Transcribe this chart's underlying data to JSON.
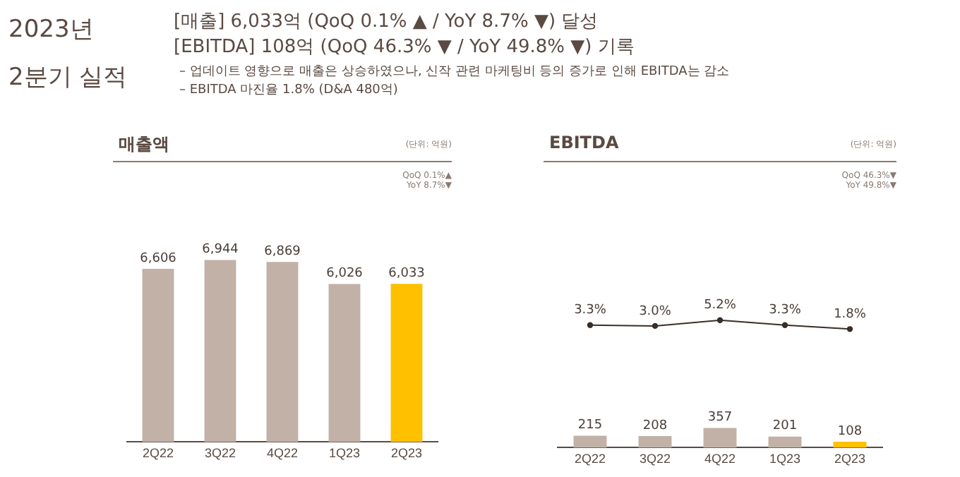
{
  "chart_data": [
    {
      "type": "other",
      "title": "2023년 2분기 실적",
      "annotations": [
        "[매출] 6,033억 (QoQ 0.1% ▲ / YoY 8.7% ▼) 달성",
        "[EBITDA] 108억 (QoQ 46.3% ▼ / YoY 49.8% ▼) 기록",
        "–   업데이트 영향으로 매출은 상승하였으나, 신작 관련 마케팅비 등의 증가로 인해 EBITDA는 감소",
        "–   EBITDA 마진율 1.8% (D&A 480억)"
      ]
    },
    {
      "type": "bar",
      "title": "매출액",
      "annotations": [
        "(단위: 억원)",
        "QoQ 0.1%▲",
        "YoY 8.7%▼"
      ],
      "categories": [
        "2Q22",
        "3Q22",
        "4Q22",
        "1Q23",
        "2Q23"
      ],
      "series": [
        {
          "type": "bar",
          "colors": [
            "#c1b1a6",
            "#c1b1a6",
            "#c1b1a6",
            "#c1b1a6",
            "#ffc000"
          ],
          "values": [
            6606,
            6944,
            6869,
            6026,
            6033
          ],
          "value_labels": [
            "6,606",
            "6,944",
            "6,869",
            "6,026",
            "6,033"
          ]
        }
      ],
      "tick_labels": "x",
      "grid": false,
      "legend": false
    },
    {
      "type": "line",
      "title": "EBITDA",
      "annotations": [
        "(단위: 억원)",
        "QoQ 46.3%▼",
        "YoY 49.8%▼"
      ],
      "categories": [
        null,
        null,
        null,
        null,
        null
      ],
      "series": [
        {
          "type": "line",
          "color": "#3a2e28",
          "values": [
            3.3,
            3.0,
            5.2,
            3.3,
            1.8
          ],
          "value_labels": [
            "3.3%",
            "3.0%",
            "5.2%",
            "3.3%",
            "1.8%"
          ]
        }
      ],
      "tick_labels": false,
      "grid": false,
      "legend": false,
      "marker": "circle",
      "line_style": "solid"
    },
    {
      "type": "bar",
      "categories": [
        "2Q22",
        "3Q22",
        "4Q22",
        "1Q23",
        "2Q23"
      ],
      "series": [
        {
          "type": "bar",
          "colors": [
            "#c1b1a6",
            "#c1b1a6",
            "#c1b1a6",
            "#c1b1a6",
            "#ffc000"
          ],
          "values": [
            215,
            208,
            357,
            201,
            108
          ],
          "value_labels": [
            "215",
            "208",
            "357",
            "201",
            "108"
          ]
        }
      ],
      "tick_labels": "x",
      "grid": false,
      "legend": false
    }
  ]
}
